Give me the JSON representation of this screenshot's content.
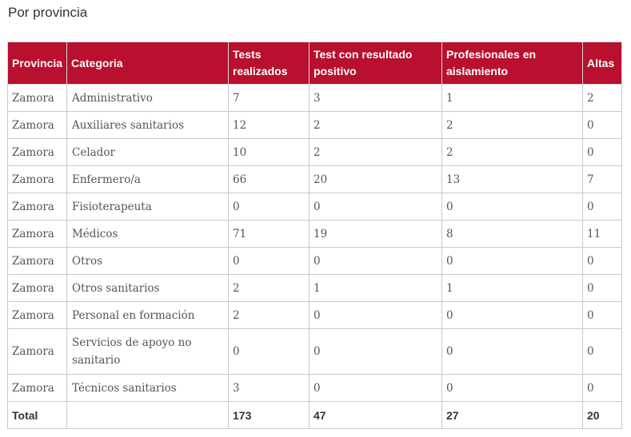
{
  "title": "Por provincia",
  "table": {
    "headers": [
      "Provincia",
      "Categoria",
      "Tests realizados",
      "Test con resultado positivo",
      "Profesionales en aislamiento",
      "Altas"
    ],
    "rows": [
      [
        "Zamora",
        "Administrativo",
        "7",
        "3",
        "1",
        "2"
      ],
      [
        "Zamora",
        "Auxiliares sanitarios",
        "12",
        "2",
        "2",
        "0"
      ],
      [
        "Zamora",
        "Celador",
        "10",
        "2",
        "2",
        "0"
      ],
      [
        "Zamora",
        "Enfermero/a",
        "66",
        "20",
        "13",
        "7"
      ],
      [
        "Zamora",
        "Fisioterapeuta",
        "0",
        "0",
        "0",
        "0"
      ],
      [
        "Zamora",
        "Médicos",
        "71",
        "19",
        "8",
        "11"
      ],
      [
        "Zamora",
        "Otros",
        "0",
        "0",
        "0",
        "0"
      ],
      [
        "Zamora",
        "Otros sanitarios",
        "2",
        "1",
        "1",
        "0"
      ],
      [
        "Zamora",
        "Personal en formación",
        "2",
        "0",
        "0",
        "0"
      ],
      [
        "Zamora",
        "Servicios de apoyo no sanitario",
        "0",
        "0",
        "0",
        "0"
      ],
      [
        "Zamora",
        "Técnicos sanitarios",
        "3",
        "0",
        "0",
        "0"
      ]
    ],
    "total": [
      "Total",
      "",
      "173",
      "47",
      "27",
      "20"
    ]
  },
  "colors": {
    "header_bg": "#b8102e",
    "header_text": "#ffffff",
    "border": "#c9c9c9"
  }
}
